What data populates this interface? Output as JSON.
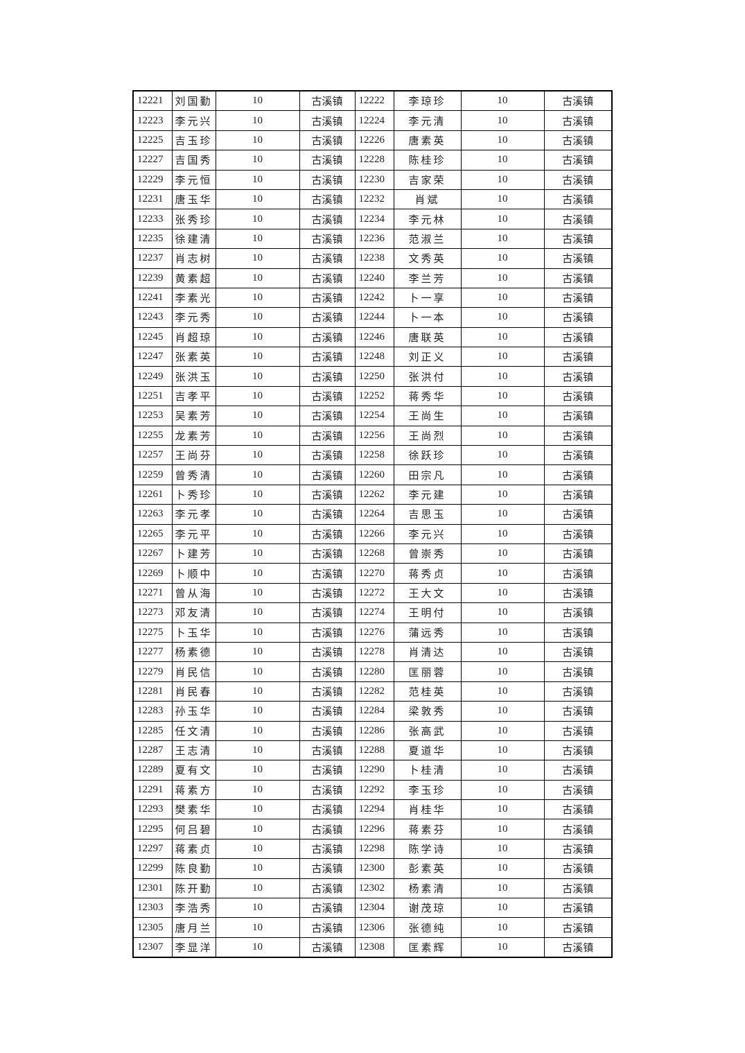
{
  "table": {
    "rows": [
      [
        "12221",
        "刘国勤",
        "10",
        "古溪镇",
        "12222",
        "李琼珍",
        "10",
        "古溪镇"
      ],
      [
        "12223",
        "李元兴",
        "10",
        "古溪镇",
        "12224",
        "李元清",
        "10",
        "古溪镇"
      ],
      [
        "12225",
        "吉玉珍",
        "10",
        "古溪镇",
        "12226",
        "唐素英",
        "10",
        "古溪镇"
      ],
      [
        "12227",
        "吉国秀",
        "10",
        "古溪镇",
        "12228",
        "陈桂珍",
        "10",
        "古溪镇"
      ],
      [
        "12229",
        "李元恒",
        "10",
        "古溪镇",
        "12230",
        "吉家荣",
        "10",
        "古溪镇"
      ],
      [
        "12231",
        "唐玉华",
        "10",
        "古溪镇",
        "12232",
        "肖斌",
        "10",
        "古溪镇"
      ],
      [
        "12233",
        "张秀珍",
        "10",
        "古溪镇",
        "12234",
        "李元林",
        "10",
        "古溪镇"
      ],
      [
        "12235",
        "徐建清",
        "10",
        "古溪镇",
        "12236",
        "范淑兰",
        "10",
        "古溪镇"
      ],
      [
        "12237",
        "肖志树",
        "10",
        "古溪镇",
        "12238",
        "文秀英",
        "10",
        "古溪镇"
      ],
      [
        "12239",
        "黄素超",
        "10",
        "古溪镇",
        "12240",
        "李兰芳",
        "10",
        "古溪镇"
      ],
      [
        "12241",
        "李素光",
        "10",
        "古溪镇",
        "12242",
        "卜一享",
        "10",
        "古溪镇"
      ],
      [
        "12243",
        "李元秀",
        "10",
        "古溪镇",
        "12244",
        "卜一本",
        "10",
        "古溪镇"
      ],
      [
        "12245",
        "肖超琼",
        "10",
        "古溪镇",
        "12246",
        "唐联英",
        "10",
        "古溪镇"
      ],
      [
        "12247",
        "张素英",
        "10",
        "古溪镇",
        "12248",
        "刘正义",
        "10",
        "古溪镇"
      ],
      [
        "12249",
        "张洪玉",
        "10",
        "古溪镇",
        "12250",
        "张洪付",
        "10",
        "古溪镇"
      ],
      [
        "12251",
        "吉孝平",
        "10",
        "古溪镇",
        "12252",
        "蒋秀华",
        "10",
        "古溪镇"
      ],
      [
        "12253",
        "吴素芳",
        "10",
        "古溪镇",
        "12254",
        "王尚生",
        "10",
        "古溪镇"
      ],
      [
        "12255",
        "龙素芳",
        "10",
        "古溪镇",
        "12256",
        "王尚烈",
        "10",
        "古溪镇"
      ],
      [
        "12257",
        "王尚芬",
        "10",
        "古溪镇",
        "12258",
        "徐跃珍",
        "10",
        "古溪镇"
      ],
      [
        "12259",
        "曾秀清",
        "10",
        "古溪镇",
        "12260",
        "田宗凡",
        "10",
        "古溪镇"
      ],
      [
        "12261",
        "卜秀珍",
        "10",
        "古溪镇",
        "12262",
        "李元建",
        "10",
        "古溪镇"
      ],
      [
        "12263",
        "李元孝",
        "10",
        "古溪镇",
        "12264",
        "吉思玉",
        "10",
        "古溪镇"
      ],
      [
        "12265",
        "李元平",
        "10",
        "古溪镇",
        "12266",
        "李元兴",
        "10",
        "古溪镇"
      ],
      [
        "12267",
        "卜建芳",
        "10",
        "古溪镇",
        "12268",
        "曾崇秀",
        "10",
        "古溪镇"
      ],
      [
        "12269",
        "卜顺中",
        "10",
        "古溪镇",
        "12270",
        "蒋秀贞",
        "10",
        "古溪镇"
      ],
      [
        "12271",
        "曾从海",
        "10",
        "古溪镇",
        "12272",
        "王大文",
        "10",
        "古溪镇"
      ],
      [
        "12273",
        "邓友清",
        "10",
        "古溪镇",
        "12274",
        "王明付",
        "10",
        "古溪镇"
      ],
      [
        "12275",
        "卜玉华",
        "10",
        "古溪镇",
        "12276",
        "蒲远秀",
        "10",
        "古溪镇"
      ],
      [
        "12277",
        "杨素德",
        "10",
        "古溪镇",
        "12278",
        "肖清达",
        "10",
        "古溪镇"
      ],
      [
        "12279",
        "肖民信",
        "10",
        "古溪镇",
        "12280",
        "匡丽蓉",
        "10",
        "古溪镇"
      ],
      [
        "12281",
        "肖民春",
        "10",
        "古溪镇",
        "12282",
        "范桂英",
        "10",
        "古溪镇"
      ],
      [
        "12283",
        "孙玉华",
        "10",
        "古溪镇",
        "12284",
        "梁敦秀",
        "10",
        "古溪镇"
      ],
      [
        "12285",
        "任文清",
        "10",
        "古溪镇",
        "12286",
        "张高武",
        "10",
        "古溪镇"
      ],
      [
        "12287",
        "王志清",
        "10",
        "古溪镇",
        "12288",
        "夏道华",
        "10",
        "古溪镇"
      ],
      [
        "12289",
        "夏有文",
        "10",
        "古溪镇",
        "12290",
        "卜桂清",
        "10",
        "古溪镇"
      ],
      [
        "12291",
        "蒋素方",
        "10",
        "古溪镇",
        "12292",
        "李玉珍",
        "10",
        "古溪镇"
      ],
      [
        "12293",
        "樊素华",
        "10",
        "古溪镇",
        "12294",
        "肖桂华",
        "10",
        "古溪镇"
      ],
      [
        "12295",
        "何吕碧",
        "10",
        "古溪镇",
        "12296",
        "蒋素芬",
        "10",
        "古溪镇"
      ],
      [
        "12297",
        "蒋素贞",
        "10",
        "古溪镇",
        "12298",
        "陈学诗",
        "10",
        "古溪镇"
      ],
      [
        "12299",
        "陈良勤",
        "10",
        "古溪镇",
        "12300",
        "彭素英",
        "10",
        "古溪镇"
      ],
      [
        "12301",
        "陈开勤",
        "10",
        "古溪镇",
        "12302",
        "杨素清",
        "10",
        "古溪镇"
      ],
      [
        "12303",
        "李浩秀",
        "10",
        "古溪镇",
        "12304",
        "谢茂琼",
        "10",
        "古溪镇"
      ],
      [
        "12305",
        "唐月兰",
        "10",
        "古溪镇",
        "12306",
        "张德纯",
        "10",
        "古溪镇"
      ],
      [
        "12307",
        "李显洋",
        "10",
        "古溪镇",
        "12308",
        "匡素辉",
        "10",
        "古溪镇"
      ]
    ]
  }
}
